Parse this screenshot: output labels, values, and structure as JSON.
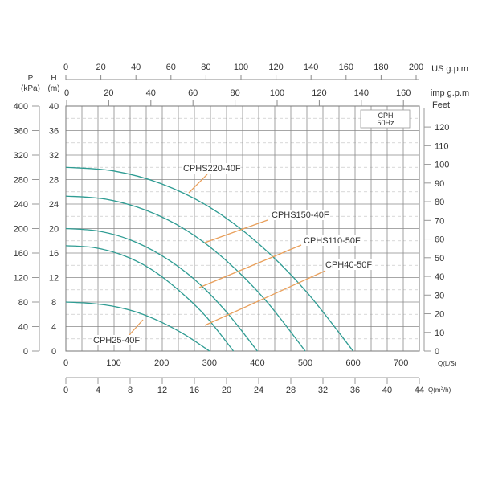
{
  "chart_data": {
    "type": "line",
    "legend_box": {
      "line1": "CPH",
      "line2": "50Hz"
    },
    "x_axis": {
      "label": "Q(L/S)",
      "ticks": [
        0,
        100,
        200,
        300,
        400,
        500,
        600,
        700
      ],
      "range": [
        0,
        733
      ]
    },
    "x_axis_m3h": {
      "label": "Q(m",
      "label_sup": "3",
      "label_end": "/h)",
      "ticks": [
        0,
        4,
        8,
        12,
        16,
        20,
        24,
        28,
        32,
        36,
        40,
        44
      ],
      "range": [
        0,
        44
      ]
    },
    "top_axis_us": {
      "label": "US g.p.m",
      "ticks": [
        0,
        20,
        40,
        60,
        80,
        100,
        120,
        140,
        160,
        180,
        200
      ]
    },
    "top_axis_imp": {
      "label": "imp g.p.m",
      "ticks": [
        0,
        20,
        40,
        60,
        80,
        100,
        120,
        140,
        160
      ]
    },
    "y_axis_h": {
      "label_line1": "H",
      "label_line2": "(m)",
      "ticks": [
        0,
        4,
        8,
        12,
        16,
        20,
        24,
        28,
        32,
        36,
        40
      ],
      "range": [
        0,
        40
      ]
    },
    "y_axis_p": {
      "label_line1": "P",
      "label_line2": "(kPa)",
      "ticks": [
        0,
        40,
        80,
        120,
        160,
        200,
        240,
        280,
        320,
        360,
        400
      ]
    },
    "y_axis_feet": {
      "label": "Feet",
      "ticks": [
        0,
        10,
        20,
        30,
        40,
        50,
        60,
        70,
        80,
        90,
        100,
        110,
        120
      ]
    },
    "grid": true,
    "colors": {
      "curve": "#2f9c93",
      "leader": "#e9a05c",
      "grid": "#8a8a8a",
      "grid_dashed": "#cccccc"
    },
    "series": [
      {
        "name": "CPHS220-40F",
        "x": [
          0,
          100,
          200,
          300,
          400,
          500,
          600
        ],
        "y": [
          30,
          29.4,
          27.3,
          23.5,
          17.7,
          9.9,
          0
        ]
      },
      {
        "name": "CPHS150-40F",
        "x": [
          0,
          83,
          167,
          250,
          333,
          417,
          500
        ],
        "y": [
          25.3,
          24.8,
          23.0,
          19.8,
          14.9,
          8.3,
          0
        ]
      },
      {
        "name": "CPHS110-50F",
        "x": [
          0,
          67,
          133,
          200,
          267,
          333,
          400
        ],
        "y": [
          20,
          19.6,
          18.2,
          15.6,
          11.8,
          6.6,
          0
        ]
      },
      {
        "name": "CPH40-50F",
        "x": [
          0,
          58,
          117,
          175,
          233,
          292,
          350
        ],
        "y": [
          17.2,
          16.9,
          15.7,
          13.5,
          10.1,
          5.7,
          0
        ]
      },
      {
        "name": "CPH25-40F",
        "x": [
          0,
          50,
          100,
          150,
          200,
          250,
          300
        ],
        "y": [
          8,
          7.8,
          7.3,
          6.3,
          4.7,
          2.6,
          0
        ]
      }
    ]
  }
}
